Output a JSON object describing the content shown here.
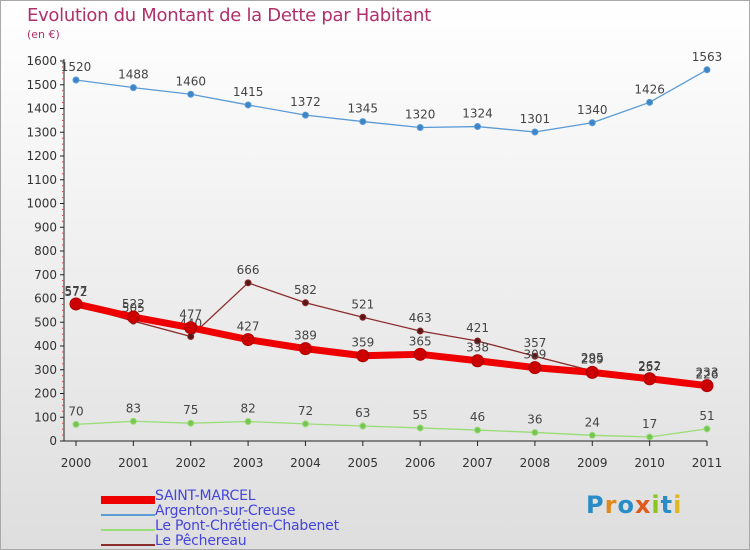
{
  "title": "Evolution du Montant de la Dette par Habitant",
  "unit": "(en €)",
  "logo": {
    "text": "Proxiti",
    "colors": [
      "#2a8cc6",
      "#e08a1e",
      "#2a8cc6",
      "#e05a1e",
      "#8ac61e",
      "#2a8cc6",
      "#e0b81e"
    ]
  },
  "chart_data": {
    "type": "line",
    "x": [
      "2000",
      "2001",
      "2002",
      "2003",
      "2004",
      "2005",
      "2006",
      "2007",
      "2008",
      "2009",
      "2010",
      "2011"
    ],
    "ylim": [
      0,
      1600
    ],
    "yticks": [
      0,
      100,
      200,
      300,
      400,
      500,
      600,
      700,
      800,
      900,
      1000,
      1100,
      1200,
      1300,
      1400,
      1500,
      1600
    ],
    "grid": false,
    "legend_position": "bottom-left",
    "series": [
      {
        "name": "Argenton-sur-Creuse",
        "color": "#5b9bd5",
        "marker": "#3d85c6",
        "width": 1.3,
        "values": [
          1520,
          1488,
          1460,
          1415,
          1372,
          1345,
          1320,
          1324,
          1301,
          1340,
          1426,
          1563
        ]
      },
      {
        "name": "Le Pont-Chrétien-Chabenet",
        "color": "#99dd77",
        "marker": "#77c455",
        "width": 1.3,
        "values": [
          70,
          83,
          75,
          82,
          72,
          63,
          55,
          46,
          36,
          24,
          17,
          51
        ]
      },
      {
        "name": "Le Pêchereau",
        "color": "#8b2c2c",
        "marker": "#5a1515",
        "width": 1.3,
        "values": [
          572,
          505,
          440,
          666,
          582,
          521,
          463,
          421,
          357,
          295,
          257,
          226
        ]
      },
      {
        "name": "SAINT-MARCEL",
        "color": "#ee0000",
        "marker": "#cc0000",
        "width": 7,
        "values": [
          577,
          522,
          477,
          427,
          389,
          359,
          365,
          338,
          309,
          289,
          262,
          233
        ]
      }
    ],
    "legend_order": [
      "SAINT-MARCEL",
      "Argenton-sur-Creuse",
      "Le Pont-Chrétien-Chabenet",
      "Le Pêchereau"
    ]
  }
}
